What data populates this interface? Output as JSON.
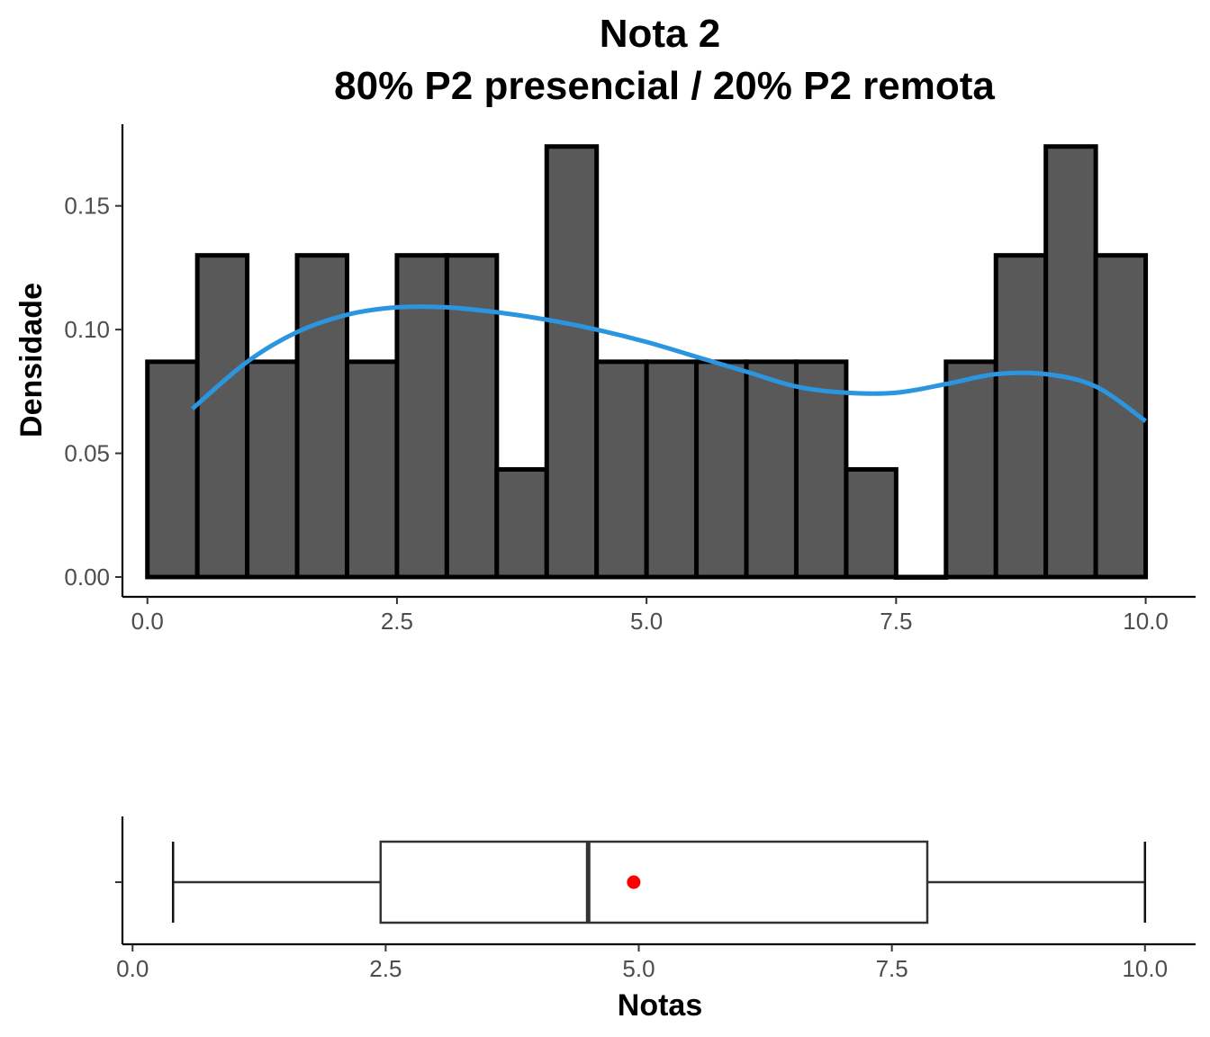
{
  "chart_data": [
    {
      "type": "histogram",
      "title": "Nota 2",
      "subtitle": "80% P2 presencial / 20% P2 remota",
      "xlabel": "",
      "ylabel": "Densidade",
      "bin_width": 0.5,
      "bins": [
        {
          "start": 0.0,
          "end": 0.5,
          "density": 0.087
        },
        {
          "start": 0.5,
          "end": 1.0,
          "density": 0.13
        },
        {
          "start": 1.0,
          "end": 1.5,
          "density": 0.087
        },
        {
          "start": 1.5,
          "end": 2.0,
          "density": 0.13
        },
        {
          "start": 2.0,
          "end": 2.5,
          "density": 0.087
        },
        {
          "start": 2.5,
          "end": 3.0,
          "density": 0.13
        },
        {
          "start": 3.0,
          "end": 3.5,
          "density": 0.13
        },
        {
          "start": 3.5,
          "end": 4.0,
          "density": 0.0435
        },
        {
          "start": 4.0,
          "end": 4.5,
          "density": 0.174
        },
        {
          "start": 4.5,
          "end": 5.0,
          "density": 0.087
        },
        {
          "start": 5.0,
          "end": 5.5,
          "density": 0.087
        },
        {
          "start": 5.5,
          "end": 6.0,
          "density": 0.087
        },
        {
          "start": 6.0,
          "end": 6.5,
          "density": 0.087
        },
        {
          "start": 6.5,
          "end": 7.0,
          "density": 0.087
        },
        {
          "start": 7.0,
          "end": 7.5,
          "density": 0.0435
        },
        {
          "start": 7.5,
          "end": 8.0,
          "density": 0.0
        },
        {
          "start": 8.0,
          "end": 8.5,
          "density": 0.087
        },
        {
          "start": 8.5,
          "end": 9.0,
          "density": 0.13
        },
        {
          "start": 9.0,
          "end": 9.5,
          "density": 0.174
        },
        {
          "start": 9.5,
          "end": 10.0,
          "density": 0.13
        }
      ],
      "density_curve": {
        "color": "#2b95df",
        "x": [
          0.45,
          1.0,
          1.5,
          2.0,
          2.5,
          3.0,
          3.5,
          4.0,
          4.5,
          5.0,
          5.5,
          6.0,
          6.5,
          7.0,
          7.5,
          8.0,
          8.5,
          9.0,
          9.5,
          10.0
        ],
        "y": [
          0.068,
          0.087,
          0.099,
          0.106,
          0.109,
          0.109,
          0.107,
          0.104,
          0.1,
          0.095,
          0.089,
          0.083,
          0.077,
          0.0745,
          0.0745,
          0.078,
          0.082,
          0.082,
          0.077,
          0.063
        ]
      },
      "xlim": [
        -0.25,
        10.5
      ],
      "ylim": [
        -0.008,
        0.183
      ],
      "x_ticks": [
        {
          "value": 0,
          "label": "0.0"
        },
        {
          "value": 2.5,
          "label": "2.5"
        },
        {
          "value": 5,
          "label": "5.0"
        },
        {
          "value": 7.5,
          "label": "7.5"
        },
        {
          "value": 10,
          "label": "10.0"
        }
      ],
      "y_ticks": [
        {
          "value": 0,
          "label": "0.00"
        },
        {
          "value": 0.05,
          "label": "0.05"
        },
        {
          "value": 0.1,
          "label": "0.10"
        },
        {
          "value": 0.15,
          "label": "0.15"
        }
      ],
      "bar_fill": "#595959",
      "bar_stroke": "#000000",
      "grid": false
    },
    {
      "type": "boxplot",
      "xlabel": "Notas",
      "ylabel": "",
      "min": 0.4,
      "q1": 2.45,
      "median": 4.5,
      "q3": 7.85,
      "max": 10.0,
      "mean": 4.95,
      "mean_color": "#ff0000",
      "xlim": [
        -0.1,
        10.5
      ],
      "x_ticks": [
        {
          "value": 0,
          "label": "0.0"
        },
        {
          "value": 2.5,
          "label": "2.5"
        },
        {
          "value": 5,
          "label": "5.0"
        },
        {
          "value": 7.5,
          "label": "7.5"
        },
        {
          "value": 10,
          "label": "10.0"
        }
      ],
      "grid": false
    }
  ]
}
